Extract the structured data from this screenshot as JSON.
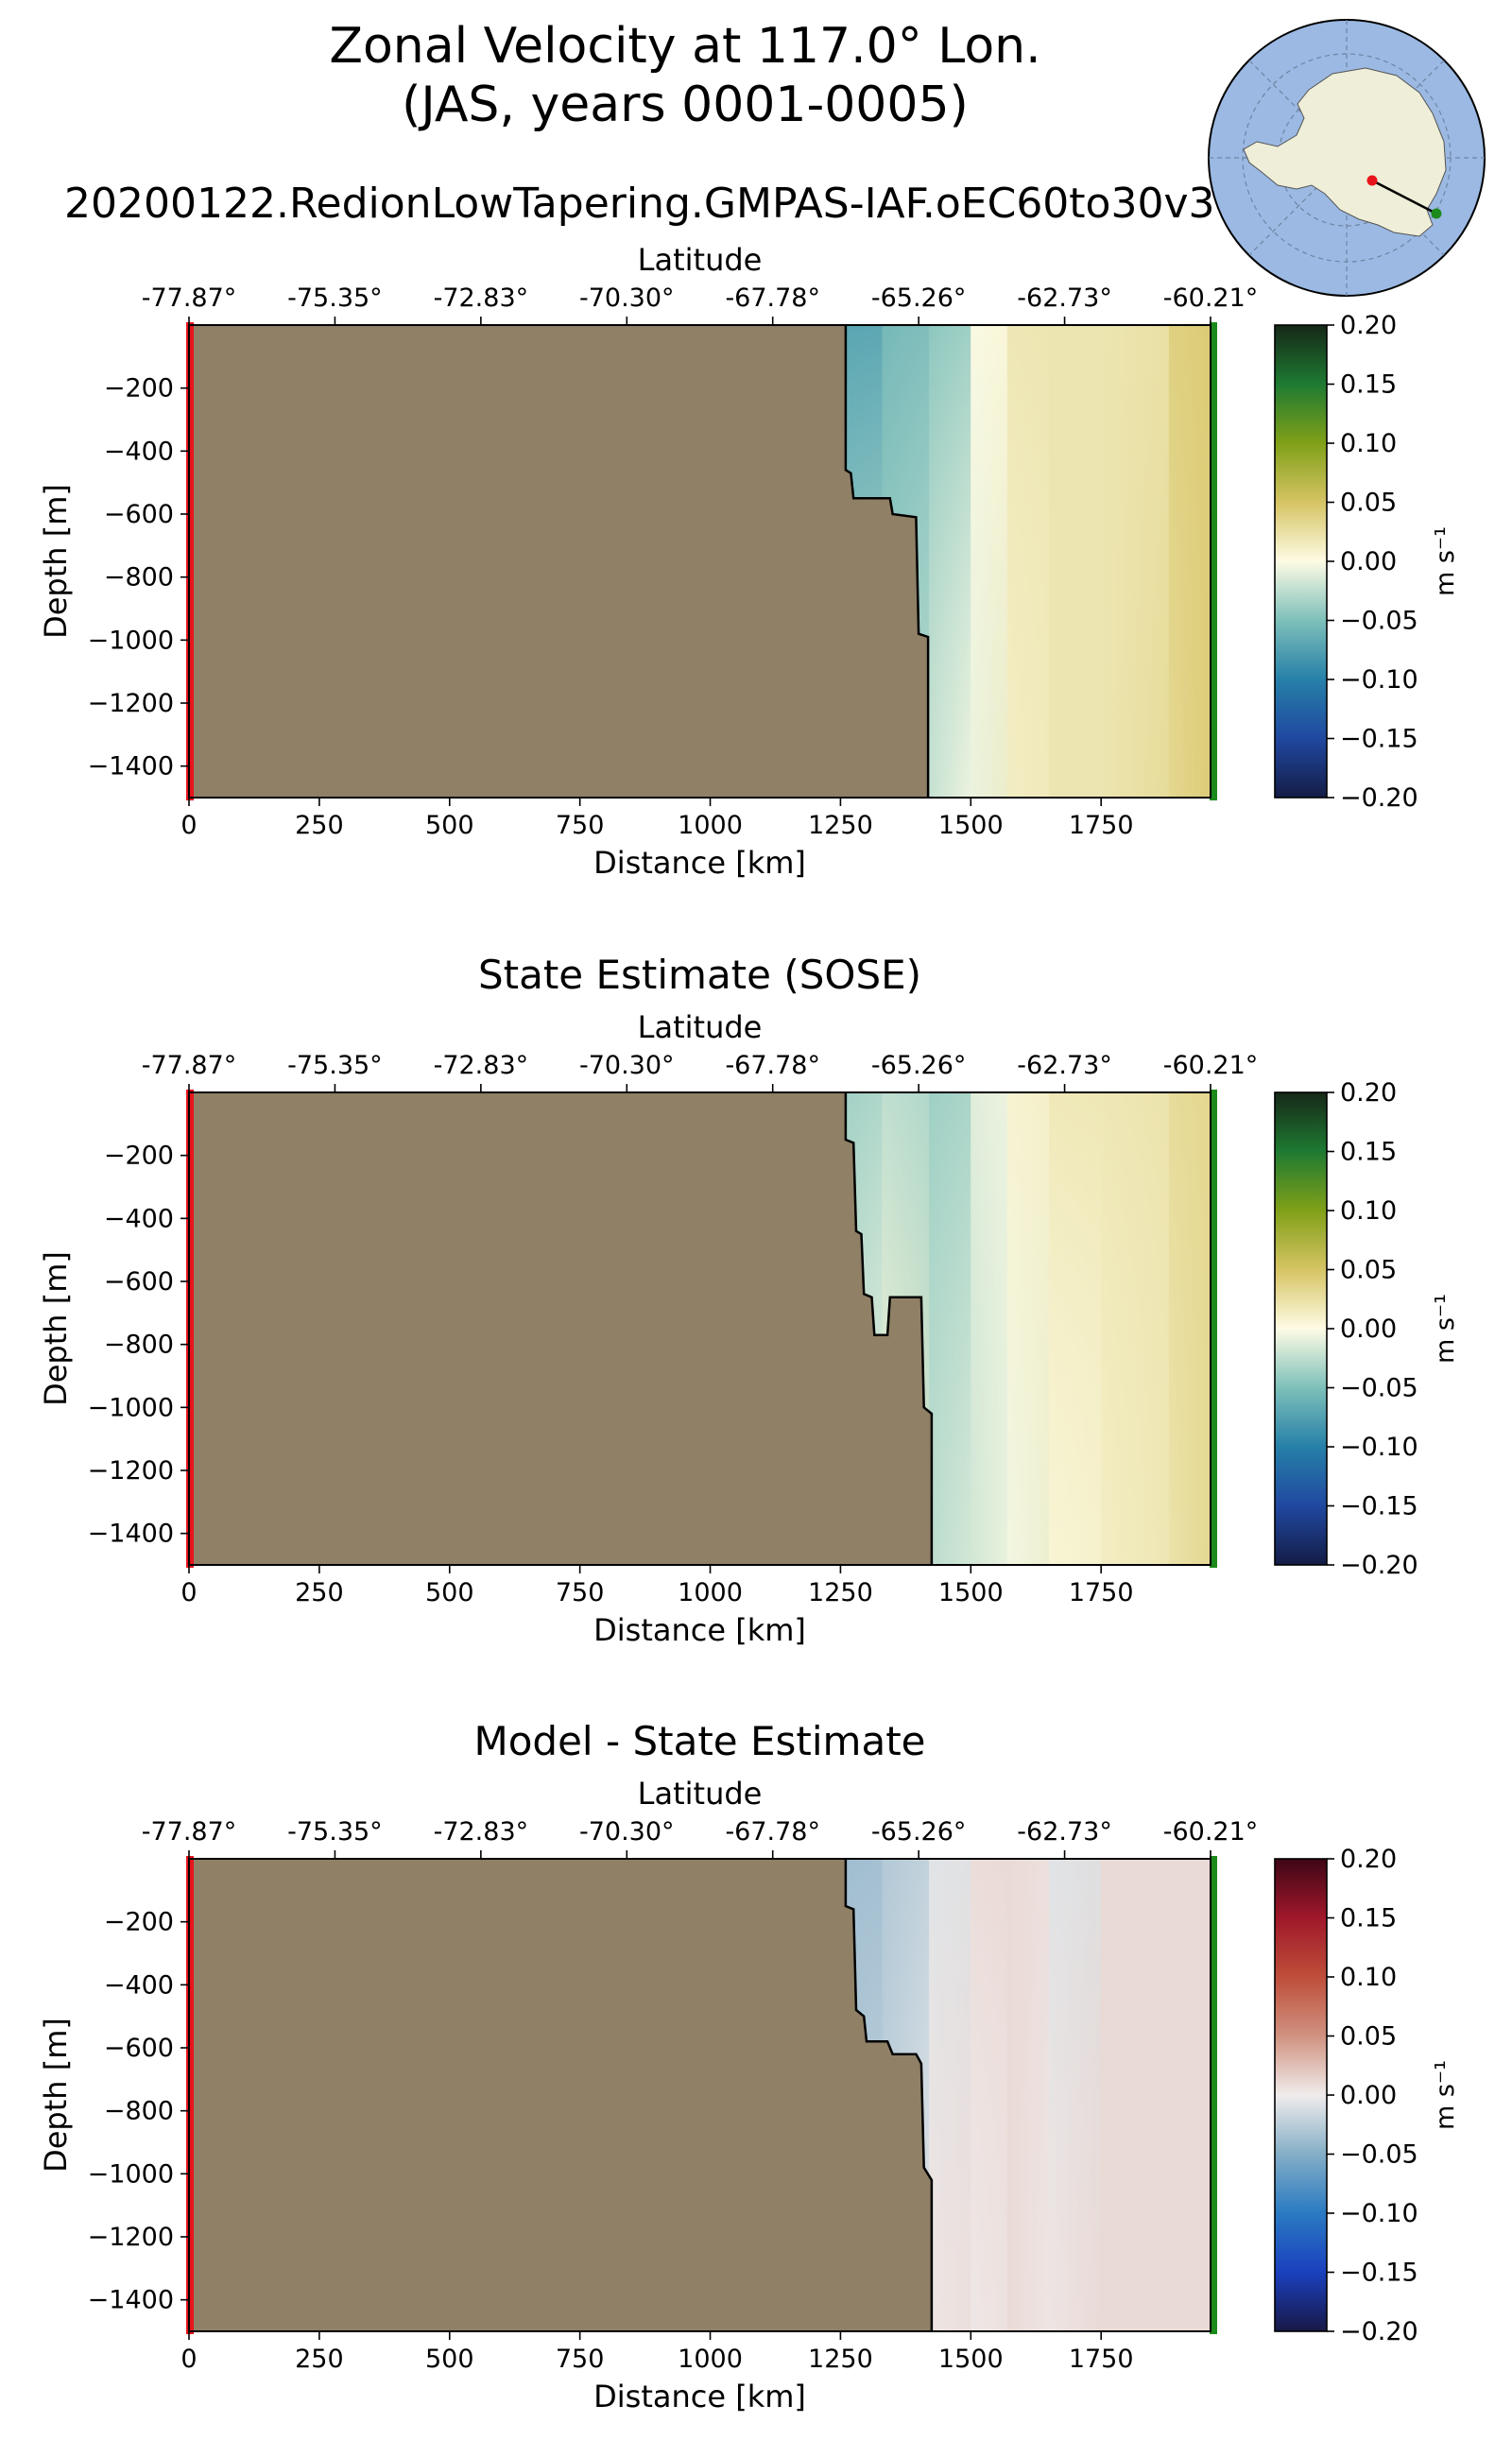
{
  "figure": {
    "title_line1": "Zonal Velocity at 117.0° Lon.",
    "title_line2": "(JAS, years 0001-0005)",
    "run_name": "20200122.RedionLowTapering.GMPAS-IAF.oEC60to30v3",
    "inset_map": "south-polar-map",
    "colors": {
      "land": "#8f8066",
      "ocean_map": "#9bb9e3",
      "continent_map": "#efeed8",
      "start_marker": "#e8141b",
      "end_marker": "#1b8a1b"
    }
  },
  "chart_data": [
    {
      "type": "heatmap",
      "title": "",
      "xlabel": "Distance [km]",
      "ylabel": "Depth [m]",
      "top_xlabel": "Latitude",
      "top_ticks": [
        "-77.87°",
        "-75.35°",
        "-72.83°",
        "-70.30°",
        "-67.78°",
        "-65.26°",
        "-62.73°",
        "-60.21°"
      ],
      "x_ticks": [
        0,
        250,
        500,
        750,
        1000,
        1250,
        1500,
        1750
      ],
      "y_ticks": [
        -200,
        -400,
        -600,
        -800,
        -1000,
        -1200,
        -1400
      ],
      "xlim": [
        0,
        1960
      ],
      "ylim": [
        -1500,
        0
      ],
      "colormap": "delta",
      "colorbar_label": "m s⁻¹",
      "colorbar_ticks": [
        "0.20",
        "0.15",
        "0.10",
        "0.05",
        "0.00",
        "−0.05",
        "−0.10",
        "−0.15",
        "−0.20"
      ],
      "vlim": [
        -0.2,
        0.2
      ],
      "bathymetry": [
        [
          1260,
          0
        ],
        [
          1260,
          -460
        ],
        [
          1270,
          -470
        ],
        [
          1275,
          -550
        ],
        [
          1345,
          -550
        ],
        [
          1350,
          -600
        ],
        [
          1395,
          -610
        ],
        [
          1400,
          -980
        ],
        [
          1418,
          -990
        ],
        [
          1418,
          -1500
        ]
      ],
      "velocity_columns": [
        {
          "x": 1260,
          "surface": -0.08,
          "deep": -0.02
        },
        {
          "x": 1330,
          "surface": -0.06,
          "deep": -0.03
        },
        {
          "x": 1420,
          "surface": -0.05,
          "deep": -0.01
        },
        {
          "x": 1500,
          "surface": 0.0,
          "deep": -0.01
        },
        {
          "x": 1570,
          "surface": 0.02,
          "deep": 0.01
        },
        {
          "x": 1650,
          "surface": 0.02,
          "deep": 0.02
        },
        {
          "x": 1750,
          "surface": 0.02,
          "deep": 0.02
        },
        {
          "x": 1880,
          "surface": 0.04,
          "deep": 0.03
        },
        {
          "x": 1960,
          "surface": 0.05,
          "deep": 0.05
        }
      ]
    },
    {
      "type": "heatmap",
      "title": "State Estimate (SOSE)",
      "xlabel": "Distance [km]",
      "ylabel": "Depth [m]",
      "top_xlabel": "Latitude",
      "top_ticks": [
        "-77.87°",
        "-75.35°",
        "-72.83°",
        "-70.30°",
        "-67.78°",
        "-65.26°",
        "-62.73°",
        "-60.21°"
      ],
      "x_ticks": [
        0,
        250,
        500,
        750,
        1000,
        1250,
        1500,
        1750
      ],
      "y_ticks": [
        -200,
        -400,
        -600,
        -800,
        -1000,
        -1200,
        -1400
      ],
      "xlim": [
        0,
        1960
      ],
      "ylim": [
        -1500,
        0
      ],
      "colormap": "delta",
      "colorbar_label": "m s⁻¹",
      "colorbar_ticks": [
        "0.20",
        "0.15",
        "0.10",
        "0.05",
        "0.00",
        "−0.05",
        "−0.10",
        "−0.15",
        "−0.20"
      ],
      "vlim": [
        -0.2,
        0.2
      ],
      "bathymetry": [
        [
          1260,
          0
        ],
        [
          1260,
          -150
        ],
        [
          1275,
          -160
        ],
        [
          1280,
          -440
        ],
        [
          1290,
          -450
        ],
        [
          1295,
          -640
        ],
        [
          1310,
          -650
        ],
        [
          1315,
          -770
        ],
        [
          1340,
          -770
        ],
        [
          1345,
          -650
        ],
        [
          1405,
          -650
        ],
        [
          1410,
          -1000
        ],
        [
          1425,
          -1020
        ],
        [
          1425,
          -1500
        ]
      ],
      "velocity_columns": [
        {
          "x": 1260,
          "surface": -0.04,
          "deep": -0.01
        },
        {
          "x": 1330,
          "surface": -0.03,
          "deep": 0.01
        },
        {
          "x": 1420,
          "surface": -0.04,
          "deep": -0.02
        },
        {
          "x": 1500,
          "surface": -0.01,
          "deep": -0.02
        },
        {
          "x": 1570,
          "surface": 0.01,
          "deep": -0.01
        },
        {
          "x": 1650,
          "surface": 0.02,
          "deep": 0.0
        },
        {
          "x": 1750,
          "surface": 0.02,
          "deep": 0.01
        },
        {
          "x": 1880,
          "surface": 0.03,
          "deep": 0.02
        },
        {
          "x": 1960,
          "surface": 0.04,
          "deep": 0.04
        }
      ]
    },
    {
      "type": "heatmap",
      "title": "Model - State Estimate",
      "xlabel": "Distance [km]",
      "ylabel": "Depth [m]",
      "top_xlabel": "Latitude",
      "top_ticks": [
        "-77.87°",
        "-75.35°",
        "-72.83°",
        "-70.30°",
        "-67.78°",
        "-65.26°",
        "-62.73°",
        "-60.21°"
      ],
      "x_ticks": [
        0,
        250,
        500,
        750,
        1000,
        1250,
        1500,
        1750
      ],
      "y_ticks": [
        -200,
        -400,
        -600,
        -800,
        -1000,
        -1200,
        -1400
      ],
      "xlim": [
        0,
        1960
      ],
      "ylim": [
        -1500,
        0
      ],
      "colormap": "balance",
      "colorbar_label": "m s⁻¹",
      "colorbar_ticks": [
        "0.20",
        "0.15",
        "0.10",
        "0.05",
        "0.00",
        "−0.05",
        "−0.10",
        "−0.15",
        "−0.20"
      ],
      "vlim": [
        -0.2,
        0.2
      ],
      "bathymetry": [
        [
          1260,
          0
        ],
        [
          1260,
          -150
        ],
        [
          1275,
          -160
        ],
        [
          1280,
          -480
        ],
        [
          1295,
          -500
        ],
        [
          1300,
          -580
        ],
        [
          1340,
          -580
        ],
        [
          1350,
          -620
        ],
        [
          1395,
          -620
        ],
        [
          1405,
          -650
        ],
        [
          1410,
          -980
        ],
        [
          1425,
          -1020
        ],
        [
          1425,
          -1500
        ]
      ],
      "velocity_columns": [
        {
          "x": 1260,
          "surface": -0.04,
          "deep": -0.02
        },
        {
          "x": 1330,
          "surface": -0.03,
          "deep": -0.02
        },
        {
          "x": 1420,
          "surface": -0.01,
          "deep": 0.01
        },
        {
          "x": 1500,
          "surface": 0.01,
          "deep": 0.0
        },
        {
          "x": 1570,
          "surface": 0.01,
          "deep": 0.01
        },
        {
          "x": 1650,
          "surface": -0.01,
          "deep": 0.01
        },
        {
          "x": 1750,
          "surface": 0.01,
          "deep": 0.01
        },
        {
          "x": 1880,
          "surface": 0.01,
          "deep": 0.01
        },
        {
          "x": 1960,
          "surface": 0.01,
          "deep": 0.01
        }
      ]
    }
  ]
}
